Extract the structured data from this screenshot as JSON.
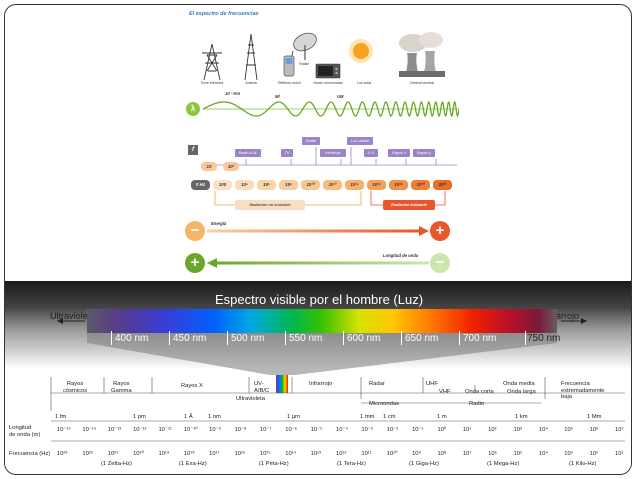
{
  "top": {
    "title": "El espectro de frecuencias",
    "sources": [
      "Torre eléctrica",
      "Antena",
      "Teléfono móvil",
      "Horno microondas",
      "Luz solar",
      "Central nuclear"
    ],
    "radar_label": "Radar",
    "wave_labels": [
      "10 ³ Km",
      "Ml",
      "UM"
    ],
    "lambda_symbol": "λ",
    "f_symbol": "f",
    "ranges": [
      "Radio A.M.",
      "TV",
      "Radar",
      "Infrarrojo",
      "Luz visible",
      "U.V.",
      "Rayos x",
      "Rayos γ"
    ],
    "orange_small": [
      "10",
      "10³"
    ],
    "hz_values": [
      "0 Hz",
      "100",
      "10⁴",
      "10⁶",
      "10⁸",
      "10¹⁰",
      "10¹²",
      "10¹⁴",
      "10¹⁶",
      "10¹⁸",
      "10²⁰",
      "10²²"
    ],
    "non_ionizing": "Radiación no ionizante",
    "ionizing": "Radiación ionizante",
    "energy_label": "Energía",
    "wavelength_label": "Longitud de onda",
    "minus": "−",
    "plus": "+",
    "colors": {
      "green": "#8dc63f",
      "orange": "#f5a14a",
      "purple": "#9b84c9",
      "red": "#e8562a"
    }
  },
  "spectrum": {
    "title": "Espectro visible por el hombre (Luz)",
    "ultraviolet": "Ultravioleta",
    "infrared": "Infrarrojo",
    "nm_labels": [
      "400 nm",
      "450 nm",
      "500 nm",
      "550 nm",
      "600 nm",
      "650 nm",
      "700 nm",
      "750 nm"
    ]
  },
  "scale": {
    "bands": [
      {
        "text": "Rayos\ncósmicos"
      },
      {
        "text": "Rayos\nGamma"
      },
      {
        "text": "Rayos X"
      },
      {
        "text": "UV-\nA/B/C"
      },
      {
        "text": "Ultravioleta"
      },
      {
        "text": "Infrarrojo"
      },
      {
        "text": "Radar"
      },
      {
        "text": "Microondas"
      },
      {
        "text": "UHF"
      },
      {
        "text": "VHF"
      },
      {
        "text": "Onda corta"
      },
      {
        "text": "Onda media"
      },
      {
        "text": "Onda larga"
      },
      {
        "text": "Radio"
      },
      {
        "text": "Frecuencia\nextremadamente\nbaja"
      }
    ],
    "length_units": [
      "1 fm",
      "1 pm",
      "1 Å",
      "1 nm",
      "1 µm",
      "1 mm",
      "1 cm",
      "1 m",
      "1 km",
      "1 Mm"
    ],
    "wavelength_row_label": "Longitud\nde onda (m)",
    "wavelength_values": [
      "10⁻¹⁵",
      "10⁻¹⁴",
      "10⁻¹³",
      "10⁻¹²",
      "10⁻¹¹",
      "10⁻¹⁰",
      "10⁻⁹",
      "10⁻⁸",
      "10⁻⁷",
      "10⁻⁶",
      "10⁻⁵",
      "10⁻⁴",
      "10⁻³",
      "10⁻²",
      "10⁻¹",
      "10⁰",
      "10¹",
      "10²",
      "10³",
      "10⁴",
      "10⁵",
      "10⁶",
      "10⁷"
    ],
    "frequency_row_label": "Frecuencia (Hz)",
    "frequency_values": [
      "10²³",
      "10²²",
      "10²¹",
      "10²⁰",
      "10¹⁹",
      "10¹⁸",
      "10¹⁷",
      "10¹⁶",
      "10¹⁵",
      "10¹⁴",
      "10¹³",
      "10¹²",
      "10¹¹",
      "10¹⁰",
      "10⁹",
      "10⁸",
      "10⁷",
      "10⁶",
      "10⁵",
      "10⁴",
      "10³",
      "10²",
      "10¹"
    ],
    "prefixes": [
      "(1 Zetta-Hz)",
      "(1 Exa-Hz)",
      "(1 Peta-Hz)",
      "(1 Tera-Hz)",
      "(1 Giga-Hz)",
      "(1 Mega-Hz)",
      "(1 Kilo-Hz)"
    ]
  }
}
